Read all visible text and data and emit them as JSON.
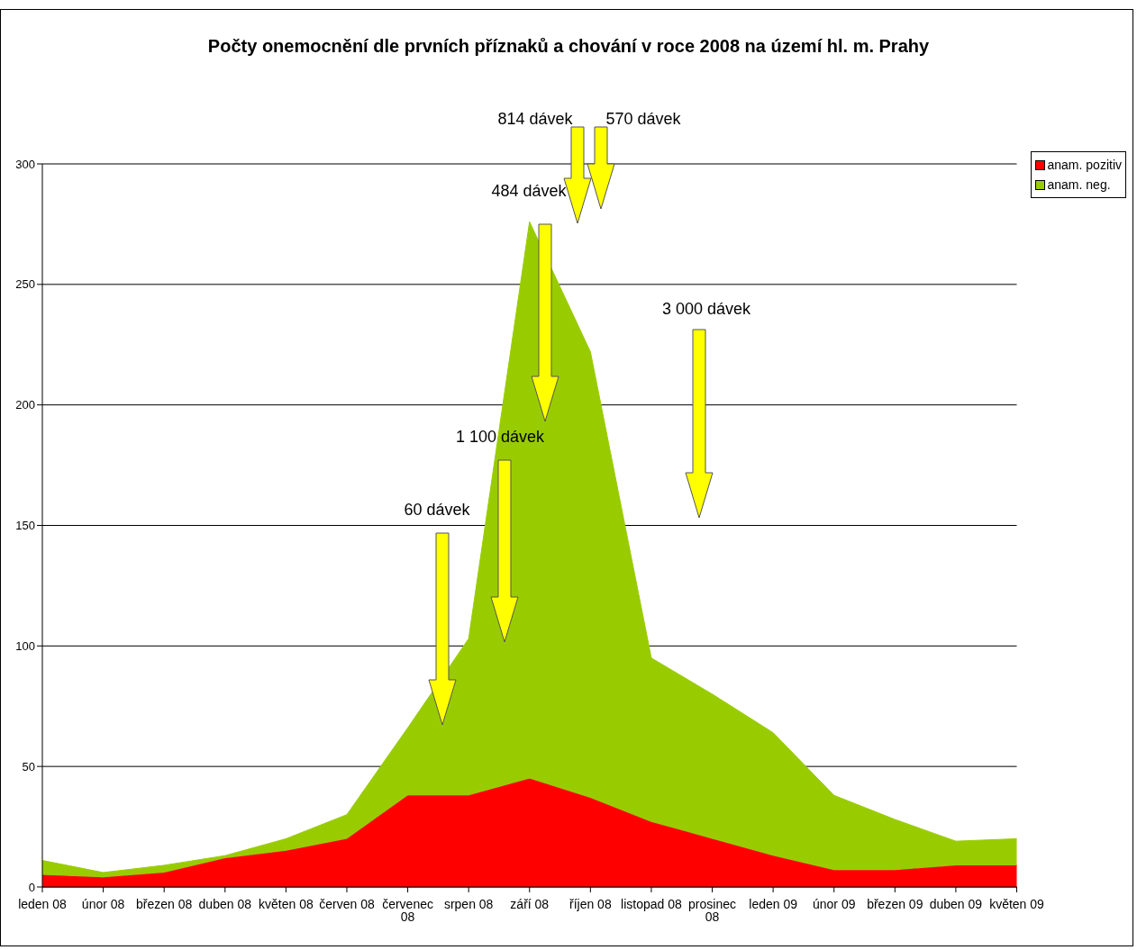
{
  "chart_data": {
    "type": "area",
    "stacked": true,
    "title": "Počty onemocnění dle prvních příznaků a chování v roce 2008 na území hl. m. Prahy",
    "categories": [
      "leden 08",
      "únor 08",
      "březen 08",
      "duben 08",
      "květen 08",
      "červen 08",
      "červenec 08",
      "srpen 08",
      "září 08",
      "říjen 08",
      "listopad 08",
      "prosinec 08",
      "leden 09",
      "únor 09",
      "březen 09",
      "duben 09",
      "květen 09"
    ],
    "series": [
      {
        "name": "anam. pozitiv",
        "color": "#ff0000",
        "values": [
          5,
          4,
          6,
          12,
          15,
          20,
          38,
          38,
          45,
          37,
          27,
          20,
          13,
          7,
          7,
          9,
          9
        ]
      },
      {
        "name": "anam. neg.",
        "color": "#99cc00",
        "values": [
          6,
          2,
          3,
          1,
          5,
          10,
          28,
          65,
          231,
          185,
          68,
          60,
          51,
          31,
          21,
          10,
          11
        ]
      }
    ],
    "ylim": [
      0,
      300
    ],
    "yticks": [
      0,
      50,
      100,
      150,
      200,
      250,
      300
    ],
    "grid": "y",
    "legend": "top right",
    "annotations": [
      "60 dávek",
      "1 100 dávek",
      "484 dávek",
      "814 dávek",
      "570 dávek",
      "3 000 dávek"
    ]
  }
}
